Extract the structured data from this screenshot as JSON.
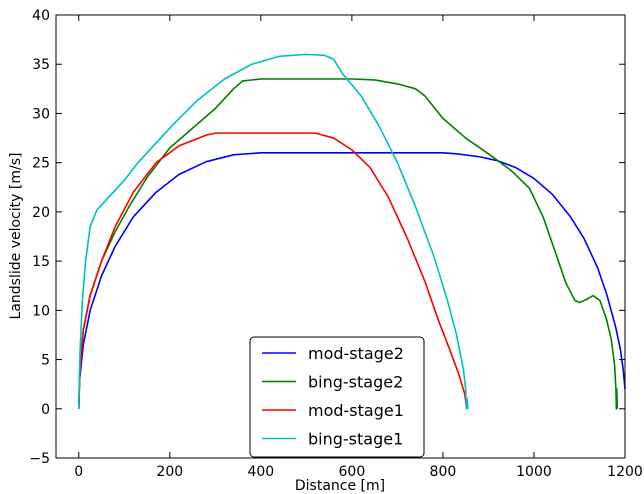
{
  "chart_data": {
    "type": "line",
    "title": "",
    "xlabel": "Distance [m]",
    "ylabel": "Landslide velocity [m/s]",
    "xlim": [
      -50,
      1200
    ],
    "ylim": [
      -5,
      40
    ],
    "xticks": [
      0,
      200,
      400,
      600,
      800,
      1000,
      1200
    ],
    "yticks": [
      -5,
      0,
      5,
      10,
      15,
      20,
      25,
      30,
      35,
      40
    ],
    "grid": false,
    "legend_position": "bottom-center",
    "series": [
      {
        "name": "mod-stage2",
        "color": "#0000ff",
        "points": [
          [
            0,
            0
          ],
          [
            2,
            3
          ],
          [
            10,
            6.5
          ],
          [
            25,
            10
          ],
          [
            50,
            13.5
          ],
          [
            80,
            16.5
          ],
          [
            120,
            19.5
          ],
          [
            170,
            22
          ],
          [
            220,
            23.8
          ],
          [
            280,
            25.1
          ],
          [
            340,
            25.8
          ],
          [
            400,
            26
          ],
          [
            600,
            26
          ],
          [
            800,
            26
          ],
          [
            830,
            25.9
          ],
          [
            880,
            25.6
          ],
          [
            920,
            25.2
          ],
          [
            960,
            24.5
          ],
          [
            1000,
            23.4
          ],
          [
            1040,
            21.8
          ],
          [
            1080,
            19.5
          ],
          [
            1110,
            17.3
          ],
          [
            1140,
            14.3
          ],
          [
            1160,
            11.6
          ],
          [
            1180,
            8.2
          ],
          [
            1190,
            6
          ],
          [
            1196,
            4
          ],
          [
            1200,
            2
          ]
        ]
      },
      {
        "name": "bing-stage2",
        "color": "#008000",
        "points": [
          [
            0,
            0
          ],
          [
            2,
            4
          ],
          [
            10,
            8
          ],
          [
            25,
            11.5
          ],
          [
            50,
            15
          ],
          [
            80,
            18
          ],
          [
            110,
            20.5
          ],
          [
            150,
            23.5
          ],
          [
            200,
            26.5
          ],
          [
            250,
            28.5
          ],
          [
            300,
            30.5
          ],
          [
            340,
            32.5
          ],
          [
            360,
            33.3
          ],
          [
            400,
            33.5
          ],
          [
            500,
            33.5
          ],
          [
            600,
            33.5
          ],
          [
            650,
            33.4
          ],
          [
            700,
            33
          ],
          [
            740,
            32.5
          ],
          [
            760,
            31.8
          ],
          [
            800,
            29.5
          ],
          [
            850,
            27.5
          ],
          [
            900,
            25.9
          ],
          [
            950,
            24.2
          ],
          [
            990,
            22.4
          ],
          [
            1020,
            19.5
          ],
          [
            1050,
            15.5
          ],
          [
            1070,
            12.8
          ],
          [
            1090,
            11
          ],
          [
            1100,
            10.8
          ],
          [
            1115,
            11.1
          ],
          [
            1130,
            11.5
          ],
          [
            1145,
            11
          ],
          [
            1160,
            9
          ],
          [
            1170,
            7
          ],
          [
            1177,
            4.5
          ],
          [
            1180,
            2
          ],
          [
            1181,
            0
          ],
          [
            1182,
            2
          ],
          [
            1183,
            0
          ]
        ]
      },
      {
        "name": "mod-stage1",
        "color": "#ff0000",
        "points": [
          [
            0,
            0
          ],
          [
            2,
            3.5
          ],
          [
            10,
            8
          ],
          [
            25,
            11.5
          ],
          [
            50,
            15
          ],
          [
            80,
            18.5
          ],
          [
            120,
            22
          ],
          [
            170,
            25
          ],
          [
            220,
            26.7
          ],
          [
            280,
            27.8
          ],
          [
            300,
            28
          ],
          [
            420,
            28
          ],
          [
            520,
            28
          ],
          [
            560,
            27.5
          ],
          [
            600,
            26.3
          ],
          [
            640,
            24.5
          ],
          [
            680,
            21.5
          ],
          [
            720,
            17.5
          ],
          [
            760,
            13
          ],
          [
            790,
            9
          ],
          [
            815,
            6
          ],
          [
            835,
            3.5
          ],
          [
            848,
            1.5
          ],
          [
            852,
            0
          ]
        ]
      },
      {
        "name": "bing-stage1",
        "color": "#00bfbf",
        "points": [
          [
            0,
            0
          ],
          [
            3,
            6
          ],
          [
            8,
            11
          ],
          [
            15,
            15
          ],
          [
            25,
            18.5
          ],
          [
            40,
            20.2
          ],
          [
            60,
            21.2
          ],
          [
            80,
            22.2
          ],
          [
            100,
            23.2
          ],
          [
            130,
            25
          ],
          [
            170,
            27
          ],
          [
            210,
            29
          ],
          [
            260,
            31.3
          ],
          [
            320,
            33.5
          ],
          [
            380,
            35
          ],
          [
            440,
            35.8
          ],
          [
            500,
            36
          ],
          [
            540,
            35.9
          ],
          [
            560,
            35.5
          ],
          [
            580,
            34
          ],
          [
            620,
            31.8
          ],
          [
            660,
            28.7
          ],
          [
            700,
            25
          ],
          [
            740,
            20.5
          ],
          [
            780,
            15.5
          ],
          [
            810,
            11
          ],
          [
            830,
            7.5
          ],
          [
            845,
            4
          ],
          [
            850,
            2
          ],
          [
            852,
            0
          ],
          [
            853,
            1
          ],
          [
            855,
            0
          ]
        ]
      }
    ]
  }
}
